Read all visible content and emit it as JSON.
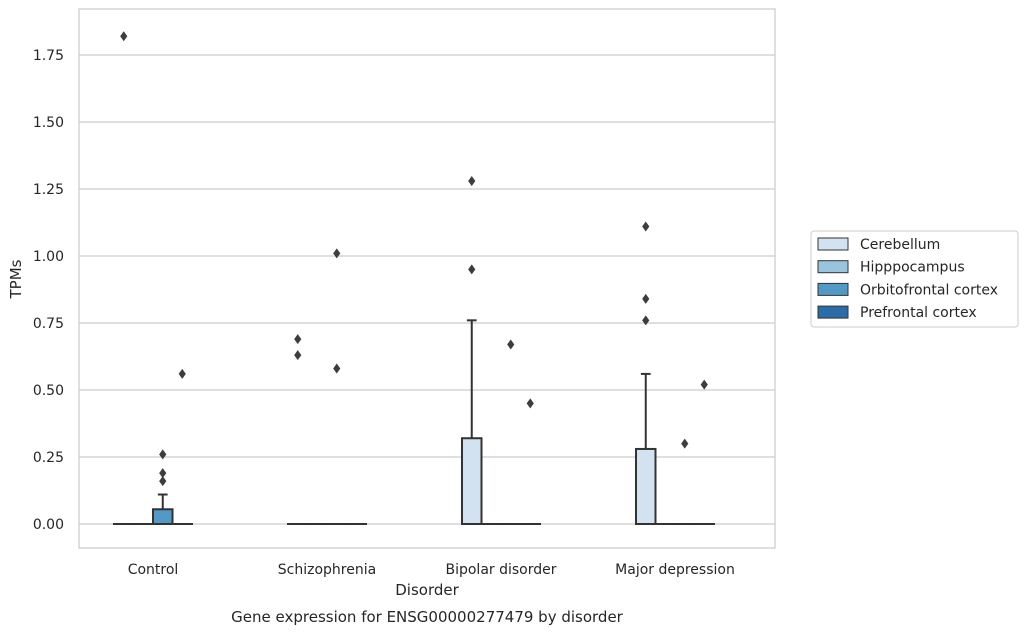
{
  "chart_data": {
    "type": "box",
    "xlabel": "Disorder",
    "ylabel": "TPMs",
    "caption": "Gene expression for ENSG00000277479 by disorder",
    "categories": [
      "Control",
      "Schizophrenia",
      "Bipolar disorder",
      "Major depression"
    ],
    "ylim": [
      -0.09,
      1.92
    ],
    "yticks": [
      0.0,
      0.25,
      0.5,
      0.75,
      1.0,
      1.25,
      1.5,
      1.75
    ],
    "ytick_labels": [
      "0.00",
      "0.25",
      "0.50",
      "0.75",
      "1.00",
      "1.25",
      "1.50",
      "1.75"
    ],
    "grid": true,
    "legend_position": "right",
    "series": [
      {
        "name": "Cerebellum",
        "color": "#d2e2f0",
        "boxes": [
          {
            "q1": 0,
            "median": 0,
            "q3": 0,
            "whislo": 0,
            "whishi": 0,
            "fliers": [
              1.82
            ]
          },
          {
            "q1": 0,
            "median": 0,
            "q3": 0,
            "whislo": 0,
            "whishi": 0,
            "fliers": [
              0.69,
              0.63
            ]
          },
          {
            "q1": 0,
            "median": 0,
            "q3": 0.32,
            "whislo": 0,
            "whishi": 0.76,
            "fliers": [
              1.28,
              0.95
            ]
          },
          {
            "q1": 0,
            "median": 0,
            "q3": 0.28,
            "whislo": 0,
            "whishi": 0.56,
            "fliers": [
              1.11,
              0.84,
              0.76
            ]
          }
        ]
      },
      {
        "name": "Hipppocampus",
        "color": "#9ac4de",
        "boxes": [
          {
            "q1": 0,
            "median": 0,
            "q3": 0,
            "whislo": 0,
            "whishi": 0,
            "fliers": []
          },
          {
            "q1": 0,
            "median": 0,
            "q3": 0,
            "whislo": 0,
            "whishi": 0,
            "fliers": []
          },
          {
            "q1": 0,
            "median": 0,
            "q3": 0,
            "whislo": 0,
            "whishi": 0,
            "fliers": []
          },
          {
            "q1": 0,
            "median": 0,
            "q3": 0,
            "whislo": 0,
            "whishi": 0,
            "fliers": []
          }
        ]
      },
      {
        "name": "Orbitofrontal cortex",
        "color": "#5299c6",
        "boxes": [
          {
            "q1": 0,
            "median": 0,
            "q3": 0.055,
            "whislo": 0,
            "whishi": 0.11,
            "fliers": [
              0.26,
              0.19,
              0.16
            ]
          },
          {
            "q1": 0,
            "median": 0,
            "q3": 0,
            "whislo": 0,
            "whishi": 0,
            "fliers": [
              1.01,
              0.58
            ]
          },
          {
            "q1": 0,
            "median": 0,
            "q3": 0,
            "whislo": 0,
            "whishi": 0,
            "fliers": [
              0.67
            ]
          },
          {
            "q1": 0,
            "median": 0,
            "q3": 0,
            "whislo": 0,
            "whishi": 0,
            "fliers": [
              0.3
            ]
          }
        ]
      },
      {
        "name": "Prefrontal cortex",
        "color": "#2b6ca8",
        "boxes": [
          {
            "q1": 0,
            "median": 0,
            "q3": 0,
            "whislo": 0,
            "whishi": 0,
            "fliers": [
              0.56
            ]
          },
          {
            "q1": 0,
            "median": 0,
            "q3": 0,
            "whislo": 0,
            "whishi": 0,
            "fliers": []
          },
          {
            "q1": 0,
            "median": 0,
            "q3": 0,
            "whislo": 0,
            "whishi": 0,
            "fliers": [
              0.45
            ]
          },
          {
            "q1": 0,
            "median": 0,
            "q3": 0,
            "whislo": 0,
            "whishi": 0,
            "fliers": [
              0.52
            ]
          }
        ]
      }
    ]
  }
}
